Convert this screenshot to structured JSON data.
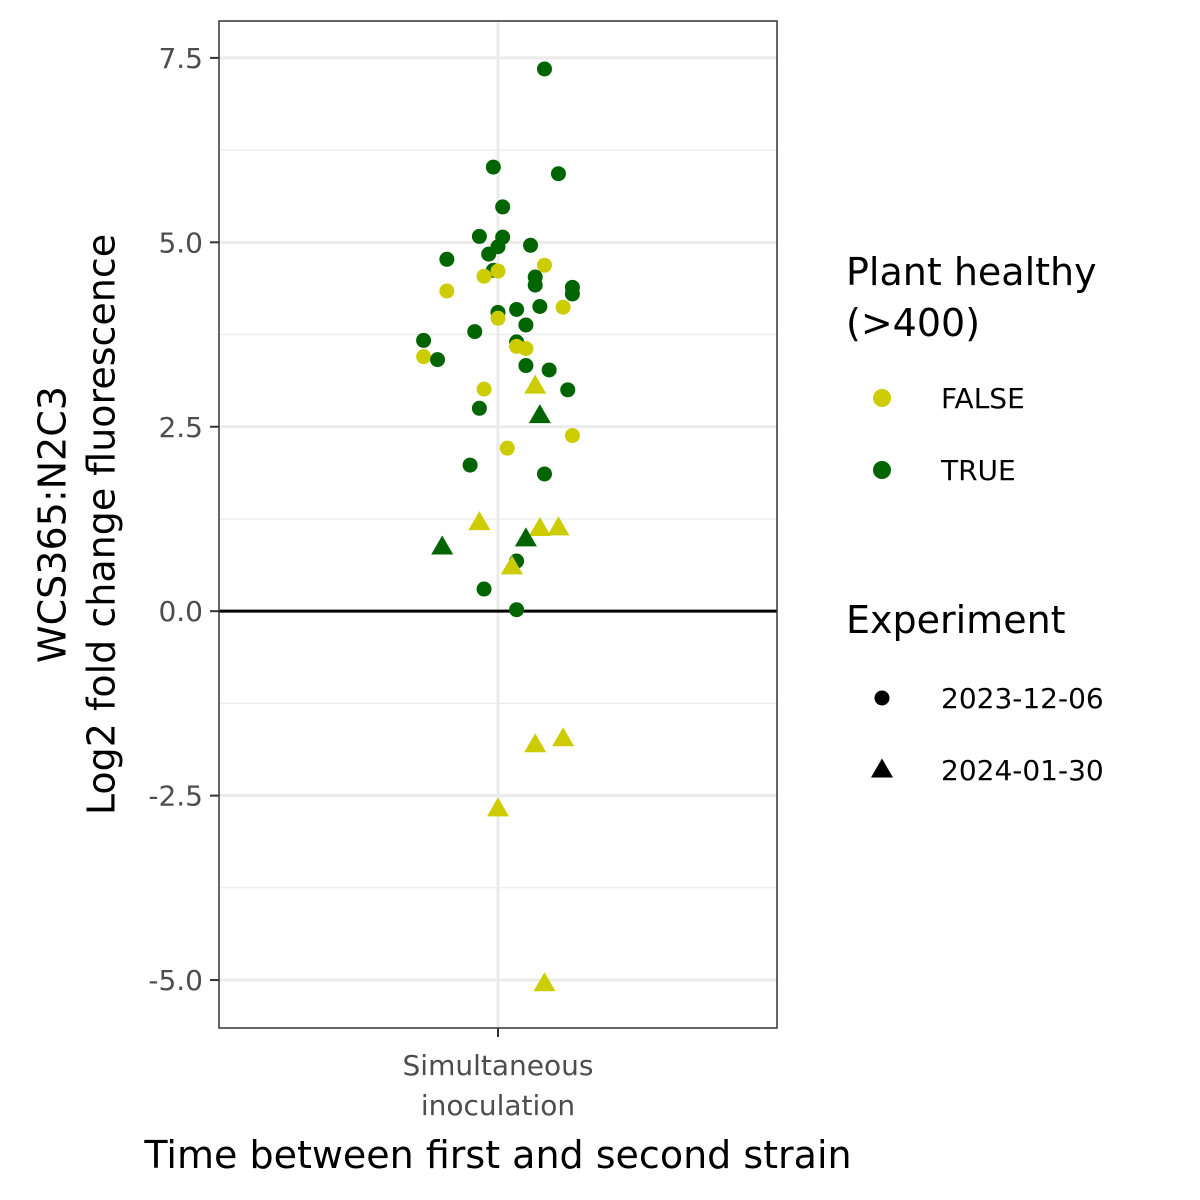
{
  "chart_data": {
    "type": "scatter",
    "xlabel": "Time between first and second strain",
    "ylabel": [
      "WCS365:N2C3",
      "Log2 fold change fluorescence"
    ],
    "categories": [
      "Simultaneous\ninoculation"
    ],
    "ylim": [
      -5.65,
      8.0
    ],
    "yticks": [
      7.5,
      5.0,
      2.5,
      0.0,
      -2.5,
      -5.0
    ],
    "ytick_labels": [
      "7.5",
      "5.0",
      "2.5",
      "0.0",
      "-2.5",
      "-5.0"
    ],
    "y_minor_gridlines": [
      6.25,
      3.75,
      1.25,
      -1.25,
      -3.75
    ],
    "hline": 0,
    "grid": true,
    "legend_position": "right",
    "colors": {
      "FALSE": "#cccc00",
      "TRUE": "#006400"
    },
    "legends": [
      {
        "title": [
          "Plant healthy",
          "(>400)"
        ],
        "items": [
          {
            "label": "FALSE",
            "color": "#cccc00",
            "shape": "circle"
          },
          {
            "label": "TRUE",
            "color": "#006400",
            "shape": "circle"
          }
        ]
      },
      {
        "title": [
          "Experiment"
        ],
        "items": [
          {
            "label": "2023-12-06",
            "color": "#000000",
            "shape": "circle"
          },
          {
            "label": "2024-01-30",
            "color": "#000000",
            "shape": "triangle"
          }
        ]
      }
    ],
    "points": [
      {
        "x": 0.1,
        "y": 7.35,
        "healthy": "TRUE",
        "experiment": "2023-12-06"
      },
      {
        "x": -0.01,
        "y": 6.02,
        "healthy": "TRUE",
        "experiment": "2023-12-06"
      },
      {
        "x": 0.13,
        "y": 5.93,
        "healthy": "TRUE",
        "experiment": "2023-12-06"
      },
      {
        "x": 0.01,
        "y": 5.48,
        "healthy": "TRUE",
        "experiment": "2023-12-06"
      },
      {
        "x": -0.04,
        "y": 5.08,
        "healthy": "TRUE",
        "experiment": "2023-12-06"
      },
      {
        "x": 0.01,
        "y": 5.07,
        "healthy": "TRUE",
        "experiment": "2023-12-06"
      },
      {
        "x": 0.07,
        "y": 4.96,
        "healthy": "TRUE",
        "experiment": "2023-12-06"
      },
      {
        "x": 0.0,
        "y": 4.94,
        "healthy": "TRUE",
        "experiment": "2023-12-06"
      },
      {
        "x": -0.02,
        "y": 4.84,
        "healthy": "TRUE",
        "experiment": "2023-12-06"
      },
      {
        "x": -0.11,
        "y": 4.77,
        "healthy": "TRUE",
        "experiment": "2023-12-06"
      },
      {
        "x": 0.1,
        "y": 4.69,
        "healthy": "FALSE",
        "experiment": "2023-12-06"
      },
      {
        "x": -0.01,
        "y": 4.62,
        "healthy": "TRUE",
        "experiment": "2023-12-06"
      },
      {
        "x": 0.0,
        "y": 4.61,
        "healthy": "FALSE",
        "experiment": "2023-12-06"
      },
      {
        "x": -0.03,
        "y": 4.54,
        "healthy": "FALSE",
        "experiment": "2023-12-06"
      },
      {
        "x": 0.08,
        "y": 4.53,
        "healthy": "TRUE",
        "experiment": "2023-12-06"
      },
      {
        "x": 0.08,
        "y": 4.42,
        "healthy": "TRUE",
        "experiment": "2023-12-06"
      },
      {
        "x": 0.16,
        "y": 4.39,
        "healthy": "TRUE",
        "experiment": "2023-12-06"
      },
      {
        "x": -0.11,
        "y": 4.34,
        "healthy": "FALSE",
        "experiment": "2023-12-06"
      },
      {
        "x": 0.16,
        "y": 4.3,
        "healthy": "TRUE",
        "experiment": "2023-12-06"
      },
      {
        "x": 0.14,
        "y": 4.12,
        "healthy": "FALSE",
        "experiment": "2023-12-06"
      },
      {
        "x": 0.09,
        "y": 4.13,
        "healthy": "TRUE",
        "experiment": "2023-12-06"
      },
      {
        "x": 0.04,
        "y": 4.09,
        "healthy": "TRUE",
        "experiment": "2023-12-06"
      },
      {
        "x": 0.0,
        "y": 4.05,
        "healthy": "TRUE",
        "experiment": "2023-12-06"
      },
      {
        "x": 0.0,
        "y": 3.97,
        "healthy": "FALSE",
        "experiment": "2023-12-06"
      },
      {
        "x": 0.06,
        "y": 3.88,
        "healthy": "TRUE",
        "experiment": "2023-12-06"
      },
      {
        "x": -0.05,
        "y": 3.79,
        "healthy": "TRUE",
        "experiment": "2023-12-06"
      },
      {
        "x": -0.16,
        "y": 3.67,
        "healthy": "TRUE",
        "experiment": "2023-12-06"
      },
      {
        "x": 0.04,
        "y": 3.65,
        "healthy": "TRUE",
        "experiment": "2023-12-06"
      },
      {
        "x": 0.04,
        "y": 3.59,
        "healthy": "FALSE",
        "experiment": "2023-12-06"
      },
      {
        "x": 0.06,
        "y": 3.56,
        "healthy": "FALSE",
        "experiment": "2023-12-06"
      },
      {
        "x": -0.16,
        "y": 3.45,
        "healthy": "FALSE",
        "experiment": "2023-12-06"
      },
      {
        "x": -0.13,
        "y": 3.41,
        "healthy": "TRUE",
        "experiment": "2023-12-06"
      },
      {
        "x": 0.06,
        "y": 3.33,
        "healthy": "TRUE",
        "experiment": "2023-12-06"
      },
      {
        "x": 0.11,
        "y": 3.27,
        "healthy": "TRUE",
        "experiment": "2023-12-06"
      },
      {
        "x": 0.08,
        "y": 3.05,
        "healthy": "FALSE",
        "experiment": "2024-01-30"
      },
      {
        "x": -0.03,
        "y": 3.01,
        "healthy": "FALSE",
        "experiment": "2023-12-06"
      },
      {
        "x": 0.15,
        "y": 3.0,
        "healthy": "TRUE",
        "experiment": "2023-12-06"
      },
      {
        "x": -0.04,
        "y": 2.75,
        "healthy": "TRUE",
        "experiment": "2023-12-06"
      },
      {
        "x": 0.09,
        "y": 2.65,
        "healthy": "TRUE",
        "experiment": "2024-01-30"
      },
      {
        "x": 0.16,
        "y": 2.38,
        "healthy": "FALSE",
        "experiment": "2023-12-06"
      },
      {
        "x": 0.02,
        "y": 2.21,
        "healthy": "FALSE",
        "experiment": "2023-12-06"
      },
      {
        "x": -0.06,
        "y": 1.98,
        "healthy": "TRUE",
        "experiment": "2023-12-06"
      },
      {
        "x": 0.1,
        "y": 1.86,
        "healthy": "TRUE",
        "experiment": "2023-12-06"
      },
      {
        "x": -0.04,
        "y": 1.2,
        "healthy": "FALSE",
        "experiment": "2024-01-30"
      },
      {
        "x": 0.13,
        "y": 1.13,
        "healthy": "FALSE",
        "experiment": "2024-01-30"
      },
      {
        "x": 0.09,
        "y": 1.12,
        "healthy": "FALSE",
        "experiment": "2024-01-30"
      },
      {
        "x": 0.06,
        "y": 0.98,
        "healthy": "TRUE",
        "experiment": "2024-01-30"
      },
      {
        "x": -0.12,
        "y": 0.87,
        "healthy": "TRUE",
        "experiment": "2024-01-30"
      },
      {
        "x": 0.04,
        "y": 0.68,
        "healthy": "TRUE",
        "experiment": "2023-12-06"
      },
      {
        "x": 0.03,
        "y": 0.6,
        "healthy": "FALSE",
        "experiment": "2024-01-30"
      },
      {
        "x": -0.03,
        "y": 0.3,
        "healthy": "TRUE",
        "experiment": "2023-12-06"
      },
      {
        "x": 0.04,
        "y": 0.02,
        "healthy": "TRUE",
        "experiment": "2023-12-06"
      },
      {
        "x": 0.14,
        "y": -1.73,
        "healthy": "FALSE",
        "experiment": "2024-01-30"
      },
      {
        "x": 0.08,
        "y": -1.81,
        "healthy": "FALSE",
        "experiment": "2024-01-30"
      },
      {
        "x": 0.0,
        "y": -2.68,
        "healthy": "FALSE",
        "experiment": "2024-01-30"
      },
      {
        "x": 0.1,
        "y": -5.05,
        "healthy": "FALSE",
        "experiment": "2024-01-30"
      }
    ]
  }
}
